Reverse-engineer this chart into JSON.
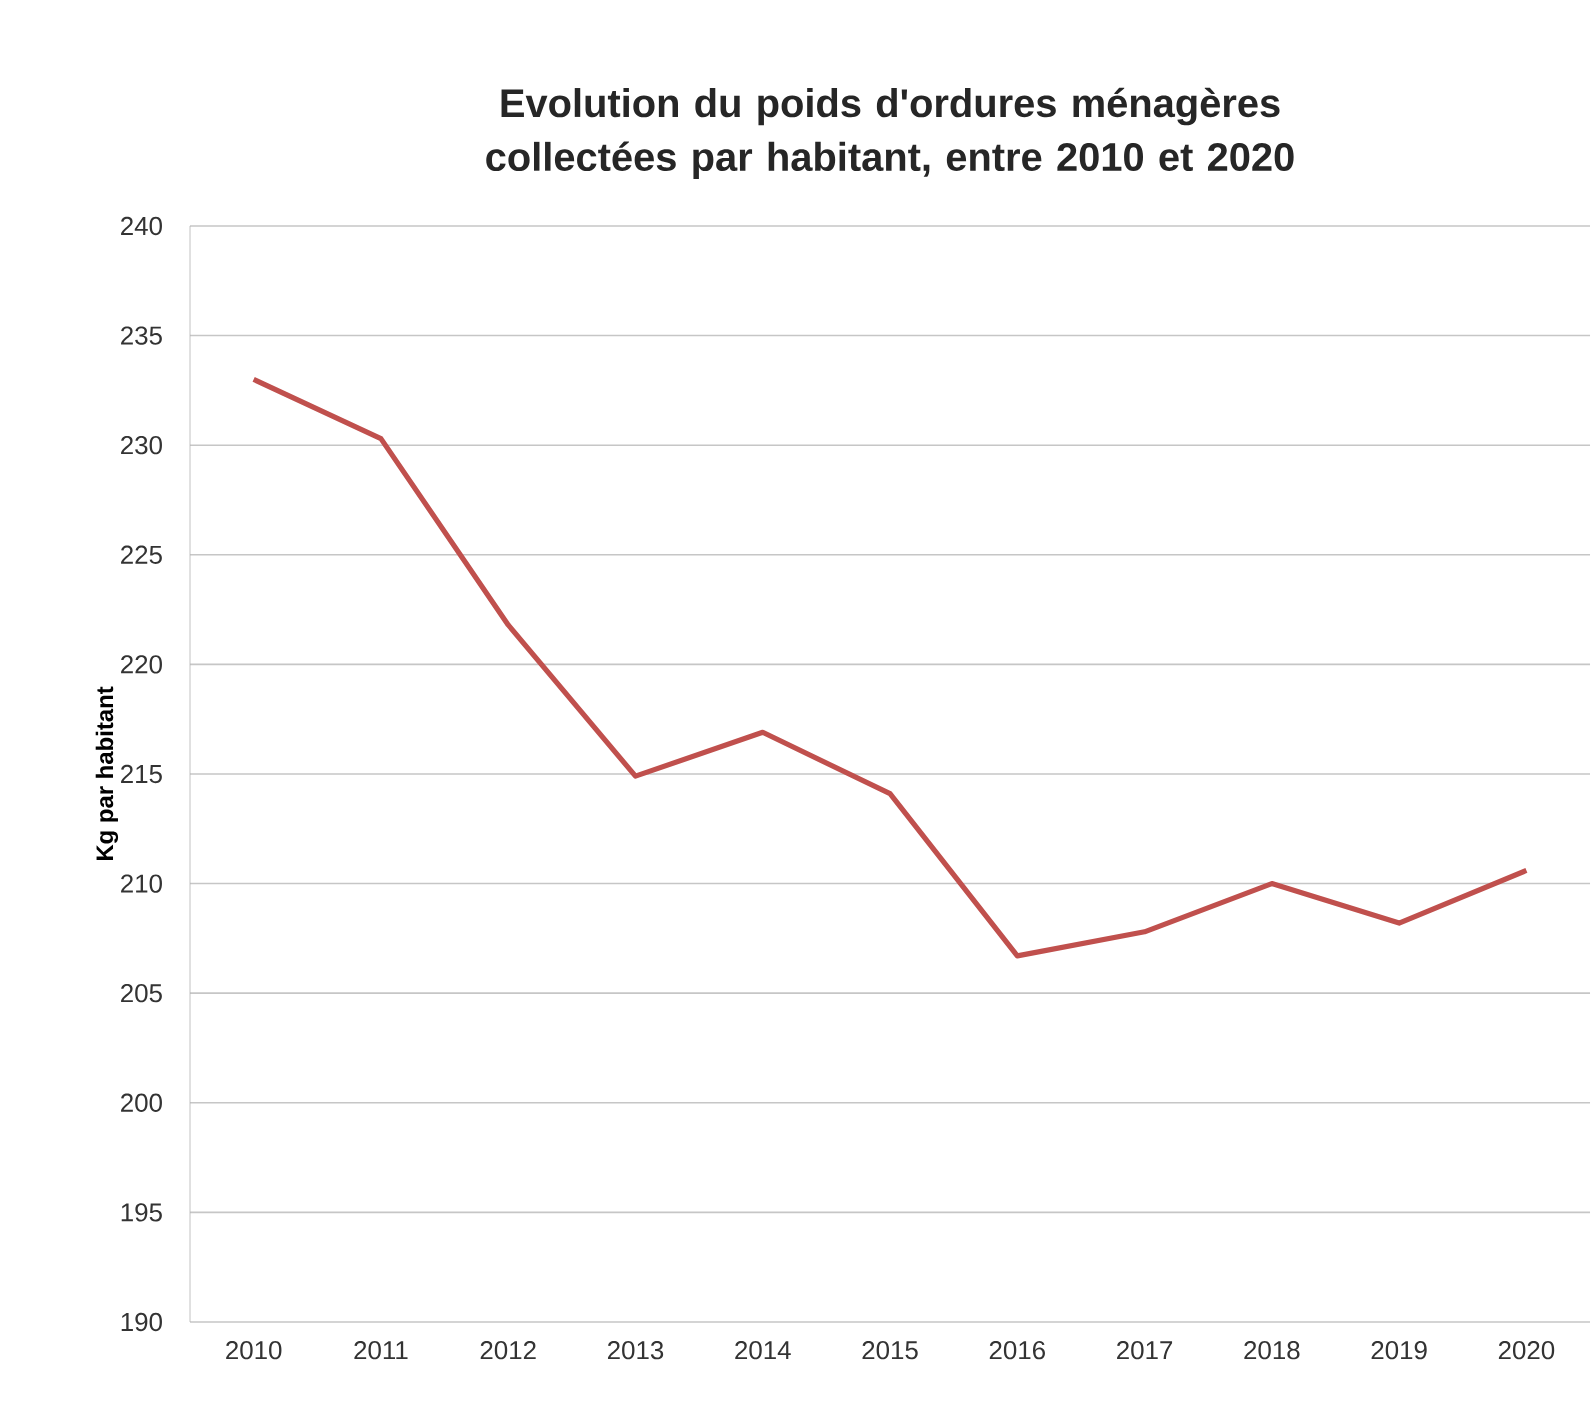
{
  "chart_data": {
    "type": "line",
    "title": "Evolution du poids d'ordures ménagères collectées par habitant, entre 2010 et 2020",
    "ylabel": "Kg par habitant",
    "categories": [
      "2010",
      "2011",
      "2012",
      "2013",
      "2014",
      "2015",
      "2016",
      "2017",
      "2018",
      "2019",
      "2020"
    ],
    "series": [
      {
        "color": "#c0504d",
        "values": [
          233.0,
          230.3,
          221.8,
          214.9,
          216.9,
          214.1,
          206.7,
          207.8,
          210.0,
          208.2,
          210.6
        ]
      }
    ],
    "ylim": [
      190,
      240
    ],
    "yticks": [
      190,
      195,
      200,
      205,
      210,
      215,
      220,
      225,
      230,
      235,
      240
    ],
    "grid": "y",
    "marker": "none",
    "line_style": "solid"
  }
}
